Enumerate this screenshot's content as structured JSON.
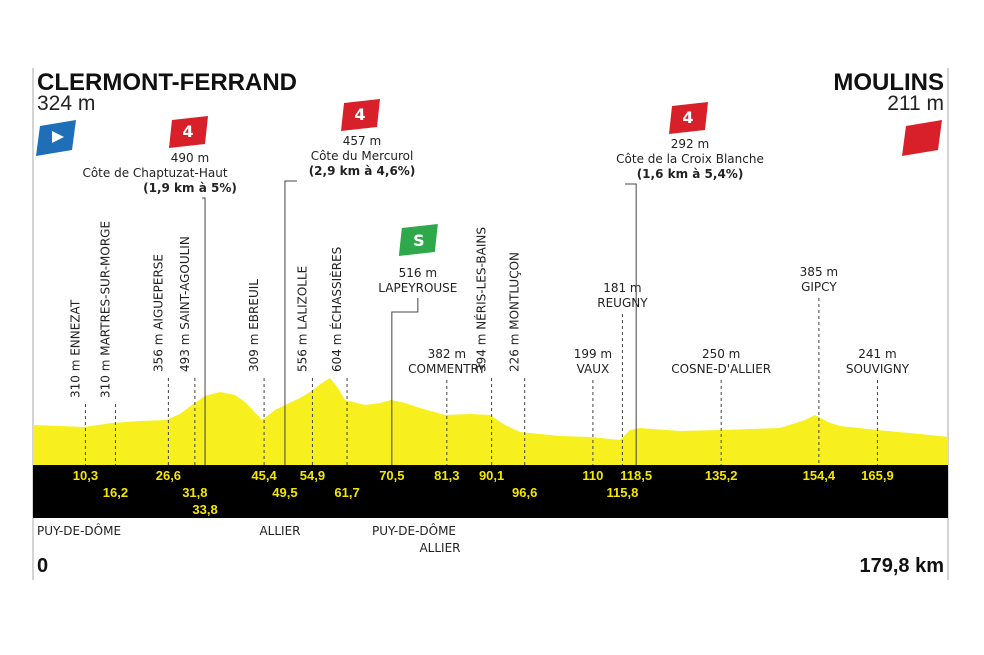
{
  "start": {
    "name": "CLERMONT-FERRAND",
    "altitude": "324 m"
  },
  "finish": {
    "name": "MOULINS",
    "altitude": "211 m"
  },
  "climbs": [
    {
      "category": "4",
      "altitude": "490 m",
      "name": "Côte de Chaptuzat-Haut",
      "detail": "(1,9 km à 5%)"
    },
    {
      "category": "4",
      "altitude": "457 m",
      "name": "Côte du Mercurol",
      "detail": "(2,9 km à 4,6%)"
    },
    {
      "category": "4",
      "altitude": "292 m",
      "name": "Côte de la Croix Blanche",
      "detail": "(1,6 km à 5,4%)"
    }
  ],
  "sprint": {
    "label": "S",
    "altitude": "516 m",
    "name": "LAPEYROUSE"
  },
  "vertical_places": [
    "310 m ENNEZAT",
    "310 m MARTRES-SUR-MORGE",
    "356 m AIGUEPERSE",
    "493 m SAINT-AGOULIN",
    "309 m EBREUIL",
    "556 m LALIZOLLE",
    "604 m ÉCHASSIÈRES",
    "394 m NÉRIS-LES-BAINS",
    "226 m MONTLUÇON"
  ],
  "places": [
    {
      "altitude": "382 m",
      "name": "COMMENTRY"
    },
    {
      "altitude": "199 m",
      "name": "VAUX"
    },
    {
      "altitude": "181 m",
      "name": "REUGNY"
    },
    {
      "altitude": "250 m",
      "name": "COSNE-D'ALLIER"
    },
    {
      "altitude": "385 m",
      "name": "GIPCY"
    },
    {
      "altitude": "241 m",
      "name": "SOUVIGNY"
    }
  ],
  "km_markers": [
    "10,3",
    "16,2",
    "26,6",
    "31,8",
    "33,8",
    "45,4",
    "49,5",
    "54,9",
    "61,7",
    "70,5",
    "81,3",
    "90,1",
    "96,6",
    "110",
    "115,8",
    "118,5",
    "135,2",
    "154,4",
    "165,9"
  ],
  "departments": [
    "PUY-DE-DÔME",
    "ALLIER",
    "PUY-DE-DÔME",
    "ALLIER"
  ],
  "distance_start": "0",
  "distance_end": "179,8 km"
}
